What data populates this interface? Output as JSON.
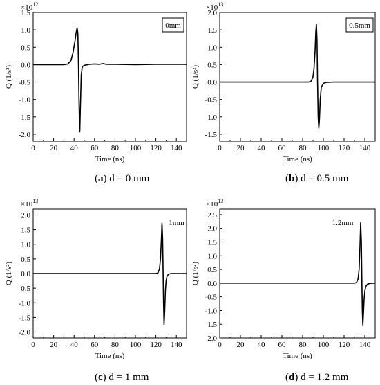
{
  "chart_data": [
    {
      "type": "line",
      "caption": {
        "letter": "a",
        "text": "d = 0 mm"
      },
      "multiplier": {
        "base": "×10",
        "exp": "12"
      },
      "badge": {
        "text": "0mm",
        "boxed": true
      },
      "xlabel": "Time (ns)",
      "ylabel": "Q (1/s²)",
      "xlim": [
        0,
        150
      ],
      "ylim": [
        -2.2,
        1.5
      ],
      "xticks": [
        0,
        20,
        40,
        60,
        80,
        100,
        120,
        140
      ],
      "yticks": [
        -2.0,
        -1.5,
        -1.0,
        -0.5,
        0.0,
        0.5,
        1.0,
        1.5
      ],
      "tick_labels_y": [
        "-2.0",
        "-1.5",
        "-1.0",
        "-0.5",
        "0.0",
        "0.5",
        "1.0",
        "1.5"
      ],
      "x": [
        0,
        30,
        34,
        37,
        39,
        41,
        42,
        43,
        43.7,
        44.2,
        44.8,
        45.3,
        45.6,
        46.2,
        47,
        48,
        50,
        55,
        60,
        65,
        68,
        72,
        80,
        100,
        120,
        150
      ],
      "y": [
        0,
        0,
        0.02,
        0.12,
        0.35,
        0.7,
        0.92,
        1.06,
        0.9,
        0.2,
        -1.0,
        -1.75,
        -1.93,
        -1.2,
        -0.3,
        -0.06,
        -0.02,
        0.01,
        0.02,
        0.01,
        0.03,
        0.01,
        0.01,
        0.0,
        0.01,
        0.01
      ]
    },
    {
      "type": "line",
      "caption": {
        "letter": "b",
        "text": "d = 0.5 mm"
      },
      "multiplier": {
        "base": "×10",
        "exp": "13"
      },
      "badge": {
        "text": "0.5mm",
        "boxed": true
      },
      "xlabel": "Time (ns)",
      "ylabel": "Q (1/s²)",
      "xlim": [
        0,
        150
      ],
      "ylim": [
        -1.7,
        2.0
      ],
      "xticks": [
        0,
        20,
        40,
        60,
        80,
        100,
        120,
        140
      ],
      "yticks": [
        -1.5,
        -1.0,
        -0.5,
        0.0,
        0.5,
        1.0,
        1.5,
        2.0
      ],
      "tick_labels_y": [
        "-1.5",
        "-1.0",
        "-0.5",
        "0.0",
        "0.5",
        "1.0",
        "1.5",
        "2.0"
      ],
      "x": [
        0,
        86,
        88,
        90,
        91,
        92,
        92.7,
        93.3,
        93.9,
        94.4,
        95,
        95.6,
        96.2,
        97,
        98,
        100,
        103,
        110,
        150
      ],
      "y": [
        0,
        0,
        0.02,
        0.15,
        0.4,
        0.9,
        1.45,
        1.65,
        1.2,
        0.0,
        -1.0,
        -1.32,
        -1.1,
        -0.5,
        -0.15,
        -0.04,
        -0.01,
        0,
        0
      ]
    },
    {
      "type": "line",
      "caption": {
        "letter": "c",
        "text": "d = 1 mm"
      },
      "multiplier": {
        "base": "×10",
        "exp": "13"
      },
      "badge": {
        "text": "1mm",
        "boxed": false
      },
      "xlabel": "Time (ns)",
      "ylabel": "Q (1/s²)",
      "xlim": [
        0,
        150
      ],
      "ylim": [
        -2.2,
        2.2
      ],
      "xticks": [
        0,
        20,
        40,
        60,
        80,
        100,
        120,
        140
      ],
      "yticks": [
        -2.0,
        -1.5,
        -1.0,
        -0.5,
        0.0,
        0.5,
        1.0,
        1.5,
        2.0
      ],
      "tick_labels_y": [
        "-2.0",
        "-1.5",
        "-1.0",
        "-0.5",
        "0.0",
        "0.5",
        "1.0",
        "1.5",
        "2.0"
      ],
      "x": [
        0,
        120,
        122,
        123.5,
        124.5,
        125.3,
        126,
        126.6,
        127.1,
        127.5,
        128,
        128.6,
        129.3,
        130,
        131,
        132.5,
        135,
        150
      ],
      "y": [
        0,
        0,
        0.02,
        0.15,
        0.5,
        1.1,
        1.72,
        1.2,
        0.0,
        -1.0,
        -1.75,
        -1.3,
        -0.6,
        -0.25,
        -0.08,
        -0.02,
        0,
        0
      ]
    },
    {
      "type": "line",
      "caption": {
        "letter": "d",
        "text": "d = 1.2 mm"
      },
      "multiplier": {
        "base": "×10",
        "exp": "13"
      },
      "badge": {
        "text": "1.2mm",
        "boxed": false
      },
      "xlabel": "Time (ns)",
      "ylabel": "Q (1/s²)",
      "xlim": [
        0,
        150
      ],
      "ylim": [
        -2.0,
        2.7
      ],
      "xticks": [
        0,
        20,
        40,
        60,
        80,
        100,
        120,
        140
      ],
      "yticks": [
        -2.0,
        -1.5,
        -1.0,
        -0.5,
        0.0,
        0.5,
        1.0,
        1.5,
        2.0,
        2.5
      ],
      "tick_labels_y": [
        "-2.0",
        "-1.5",
        "-1.0",
        "-0.5",
        "0.0",
        "0.5",
        "1.0",
        "1.5",
        "2.0",
        "2.5"
      ],
      "x": [
        0,
        130,
        132,
        133.5,
        134.5,
        135.3,
        136,
        136.7,
        137.2,
        137.6,
        138.1,
        138.7,
        139.3,
        140,
        141,
        142.5,
        145,
        150
      ],
      "y": [
        0,
        0,
        0.02,
        0.15,
        0.5,
        1.3,
        2.2,
        1.5,
        0.0,
        -1.0,
        -1.55,
        -1.1,
        -0.6,
        -0.3,
        -0.12,
        -0.04,
        -0.01,
        0
      ]
    }
  ]
}
